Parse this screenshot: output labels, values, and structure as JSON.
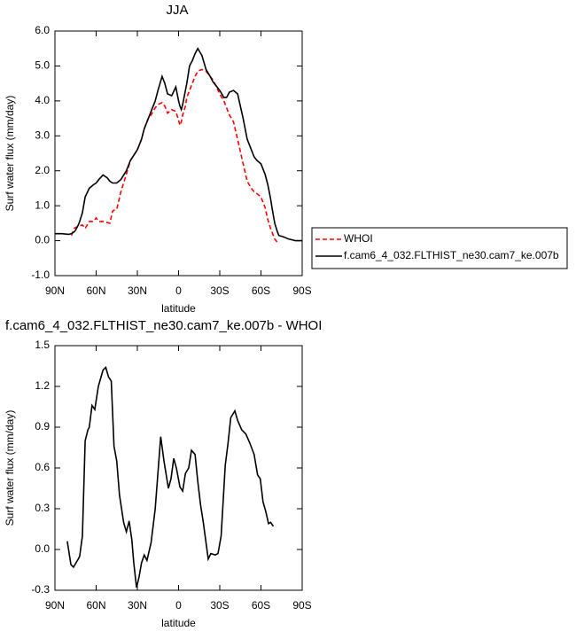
{
  "chart_data": [
    {
      "type": "line",
      "title": "JJA",
      "x_label": "latitude",
      "y_label": "Surf water flux (mm/day)",
      "x": [
        90,
        85,
        80,
        78,
        76,
        75,
        73,
        72,
        70,
        68,
        65,
        62,
        60,
        58,
        55,
        52,
        50,
        48,
        45,
        42,
        38,
        35,
        30,
        27,
        25,
        22,
        20,
        17,
        15,
        12,
        10,
        8,
        5,
        2,
        0,
        -1,
        -2,
        -3,
        -5,
        -6,
        -8,
        -10,
        -12,
        -14,
        -17,
        -20,
        -23,
        -25,
        -27,
        -30,
        -33,
        -35,
        -37,
        -40,
        -43,
        -47,
        -50,
        -53,
        -55,
        -57,
        -60,
        -63,
        -65,
        -67,
        -68,
        -70,
        -72,
        -73,
        -77,
        -80,
        -83,
        -85,
        -90
      ],
      "series": [
        {
          "name": "WHOI",
          "color": "#ff0000",
          "line_style": "dashed",
          "values": [
            null,
            null,
            null,
            0.15,
            0.35,
            0.38,
            0.4,
            0.42,
            0.45,
            0.35,
            0.55,
            0.55,
            0.65,
            0.55,
            0.55,
            0.52,
            0.5,
            0.85,
            0.9,
            1.4,
            1.9,
            2.3,
            2.6,
            2.9,
            3.2,
            3.5,
            3.6,
            3.8,
            3.9,
            3.95,
            3.85,
            3.65,
            3.75,
            3.7,
            3.45,
            3.3,
            3.4,
            3.6,
            3.85,
            4.1,
            4.3,
            4.5,
            4.7,
            4.85,
            4.9,
            4.85,
            4.7,
            4.6,
            4.45,
            4.2,
            4.0,
            3.8,
            3.6,
            3.4,
            2.9,
            2.2,
            1.7,
            1.5,
            1.4,
            1.35,
            1.25,
            0.95,
            0.6,
            0.35,
            0.25,
            0.05,
            -0.05,
            null,
            null,
            null,
            null,
            null,
            null
          ]
        },
        {
          "name": "f.cam6_4_032.FLTHIST_ne30.cam7_ke.007b",
          "color": "#000000",
          "line_style": "solid",
          "values": [
            0.2,
            0.2,
            0.18,
            0.2,
            0.25,
            0.3,
            0.45,
            0.55,
            0.8,
            1.25,
            1.5,
            1.6,
            1.65,
            1.75,
            1.88,
            1.8,
            1.7,
            1.65,
            1.65,
            1.75,
            2.0,
            2.3,
            2.6,
            2.9,
            3.2,
            3.5,
            3.7,
            4.0,
            4.3,
            4.7,
            4.5,
            4.2,
            4.15,
            4.4,
            4.0,
            3.85,
            3.75,
            3.9,
            4.3,
            4.5,
            5.0,
            5.15,
            5.35,
            5.5,
            5.3,
            4.9,
            4.7,
            4.55,
            4.45,
            4.3,
            4.1,
            4.1,
            4.25,
            4.3,
            4.2,
            3.5,
            2.9,
            2.6,
            2.4,
            2.3,
            2.2,
            1.9,
            1.6,
            1.2,
            0.95,
            0.5,
            0.25,
            0.15,
            0.1,
            0.05,
            0.02,
            0.0,
            0.0
          ]
        }
      ],
      "xlim": [
        90,
        -90
      ],
      "xticks": [
        {
          "value": 90,
          "label": "90N"
        },
        {
          "value": 60,
          "label": "60N"
        },
        {
          "value": 30,
          "label": "30N"
        },
        0,
        {
          "value": -30,
          "label": "30S"
        },
        {
          "value": -60,
          "label": "60S"
        },
        {
          "value": -90,
          "label": "90S"
        }
      ],
      "ylim": [
        -1,
        6
      ],
      "yticks": [
        {
          "value": -1,
          "label": "-1.0"
        },
        {
          "value": 0,
          "label": "0.0"
        },
        {
          "value": 1,
          "label": "1.0"
        },
        {
          "value": 2,
          "label": "2.0"
        },
        {
          "value": 3,
          "label": "3.0"
        },
        {
          "value": 4,
          "label": "4.0"
        },
        {
          "value": 5,
          "label": "5.0"
        },
        {
          "value": 6,
          "label": "6.0"
        }
      ],
      "legend": "outside-right"
    },
    {
      "type": "line",
      "title": "f.cam6_4_032.FLTHIST_ne30.cam7_ke.007b - WHOI",
      "x_label": "latitude",
      "y_label": "Surf water flux (mm/day)",
      "x": [
        81,
        78.4,
        76.5,
        73,
        72,
        70,
        68,
        66,
        65,
        63,
        61,
        58.4,
        55,
        53,
        51,
        49,
        47,
        45,
        43,
        40,
        38,
        36,
        34,
        32.6,
        30.6,
        28.7,
        27,
        25,
        23,
        20,
        17,
        13,
        10.6,
        7.4,
        5.5,
        3.5,
        1.6,
        -1,
        -3,
        -5,
        -7.4,
        -9.4,
        -12,
        -14,
        -16,
        -18,
        -21.6,
        -23.5,
        -26.7,
        -28.7,
        -31,
        -34,
        -36,
        -38,
        -41,
        -43,
        -46,
        -49,
        -52,
        -55,
        -57.5,
        -59.5,
        -61.5,
        -63.5,
        -65.5,
        -67,
        -69
      ],
      "series": [
        {
          "color": "#000000",
          "line_style": "solid",
          "values": [
            0.06,
            -0.11,
            -0.13,
            -0.07,
            -0.05,
            0.1,
            0.8,
            0.88,
            0.9,
            1.06,
            1.03,
            1.2,
            1.32,
            1.34,
            1.27,
            1.24,
            0.76,
            0.65,
            0.4,
            0.2,
            0.13,
            0.21,
            0.07,
            -0.1,
            -0.28,
            -0.2,
            -0.1,
            -0.04,
            -0.08,
            0.05,
            0.3,
            0.83,
            0.65,
            0.45,
            0.52,
            0.67,
            0.6,
            0.46,
            0.43,
            0.56,
            0.6,
            0.73,
            0.7,
            0.5,
            0.33,
            0.2,
            -0.07,
            -0.03,
            -0.04,
            -0.03,
            0.1,
            0.62,
            0.78,
            0.97,
            1.02,
            0.95,
            0.88,
            0.85,
            0.78,
            0.7,
            0.55,
            0.52,
            0.35,
            0.28,
            0.19,
            0.2,
            0.17
          ]
        }
      ],
      "xlim": [
        90,
        -90
      ],
      "xticks": [
        {
          "value": 90,
          "label": "90N"
        },
        {
          "value": 60,
          "label": "60N"
        },
        {
          "value": 30,
          "label": "30N"
        },
        0,
        {
          "value": -30,
          "label": "30S"
        },
        {
          "value": -60,
          "label": "60S"
        },
        {
          "value": -90,
          "label": "90S"
        }
      ],
      "ylim": [
        -0.3,
        1.5
      ],
      "yticks": [
        {
          "value": -0.3,
          "label": "-0.3"
        },
        {
          "value": 0,
          "label": "0.0"
        },
        {
          "value": 0.3,
          "label": "0.3"
        },
        {
          "value": 0.6,
          "label": "0.6"
        },
        {
          "value": 0.9,
          "label": "0.9"
        },
        {
          "value": 1.2,
          "label": "1.2"
        },
        {
          "value": 1.5,
          "label": "1.5"
        }
      ]
    }
  ]
}
